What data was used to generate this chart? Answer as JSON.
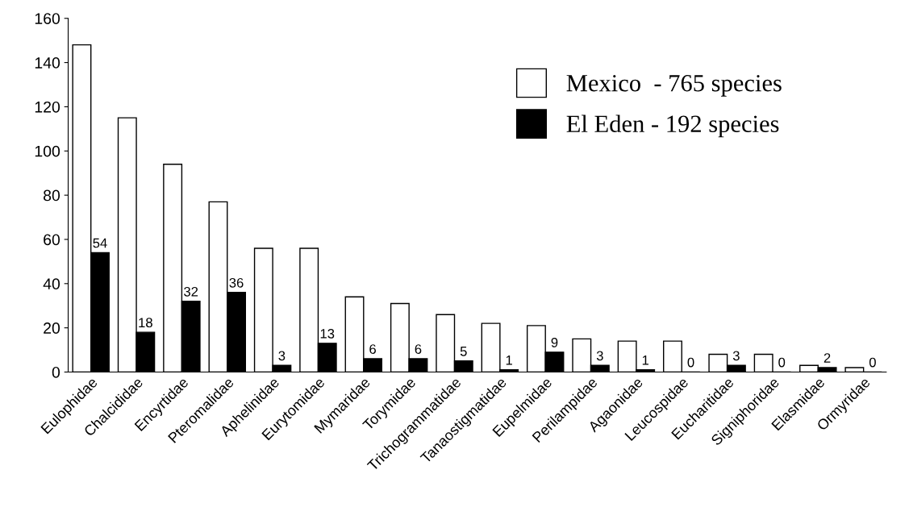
{
  "chart_data": {
    "type": "bar",
    "categories": [
      "Eulophidae",
      "Chalcididae",
      "Encyrtidae",
      "Pteromalidae",
      "Aphelinidae",
      "Eurytomidae",
      "Mymaridae",
      "Torymidae",
      "Trichogrammatidae",
      "Tanaostigmatidae",
      "Eupelmidae",
      "Perilampidae",
      "Agaonidae",
      "Leucospidae",
      "Eucharitidae",
      "Signiphoridae",
      "Elasmidae",
      "Ormyridae"
    ],
    "series": [
      {
        "name": "Mexico  - 765 species",
        "color": "#ffffff",
        "values": [
          148,
          115,
          94,
          77,
          56,
          56,
          34,
          31,
          26,
          22,
          21,
          15,
          14,
          14,
          8,
          8,
          3,
          2
        ]
      },
      {
        "name": "El Eden - 192 species",
        "color": "#000000",
        "values": [
          54,
          18,
          32,
          36,
          3,
          13,
          6,
          6,
          5,
          1,
          9,
          3,
          1,
          0,
          3,
          0,
          2,
          0
        ],
        "value_labels": [
          "54",
          "18",
          "32",
          "36",
          "3",
          "13",
          "6",
          "6",
          "5",
          "1",
          "9",
          "3",
          "1",
          "0",
          "3",
          "0",
          "2",
          "0"
        ]
      }
    ],
    "ylim": [
      0,
      160
    ],
    "yticks": [
      0,
      20,
      40,
      60,
      80,
      100,
      120,
      140,
      160
    ],
    "grid": false,
    "legend": "top right"
  }
}
